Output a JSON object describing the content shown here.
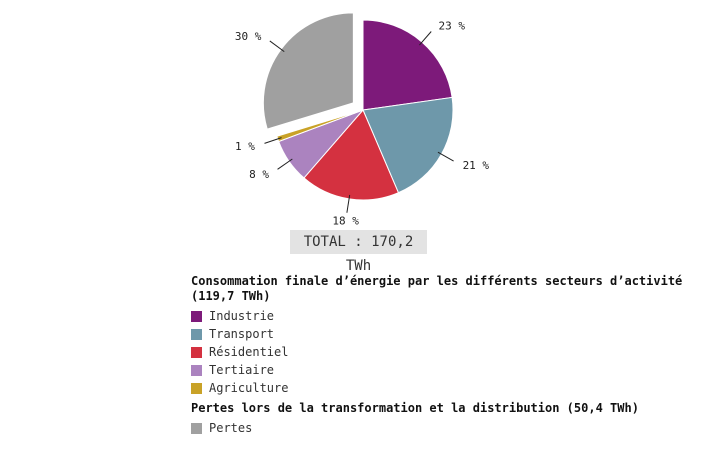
{
  "chart_data": {
    "type": "pie",
    "total_label": "TOTAL : 170,2 TWh",
    "groups": [
      {
        "heading": "Consommation finale d’énergie par les différents secteurs d’activité (119,7 TWh)",
        "items": [
          {
            "label": "Industrie",
            "value": 23,
            "value_label": "23 %",
            "color": "#7d1a7a"
          },
          {
            "label": "Transport",
            "value": 21,
            "value_label": "21 %",
            "color": "#6e98aa"
          },
          {
            "label": "Résidentiel",
            "value": 18,
            "value_label": "18 %",
            "color": "#d43140"
          },
          {
            "label": "Tertiaire",
            "value": 8,
            "value_label": "8 %",
            "color": "#ab83bf"
          },
          {
            "label": "Agriculture",
            "value": 1,
            "value_label": "1 %",
            "color": "#c9a227"
          }
        ]
      },
      {
        "heading": "Pertes lors de la transformation et la distribution (50,4 TWh)",
        "items": [
          {
            "label": "Pertes",
            "value": 30,
            "value_label": "30 %",
            "color": "#a0a0a0",
            "exploded": true
          }
        ]
      }
    ]
  }
}
